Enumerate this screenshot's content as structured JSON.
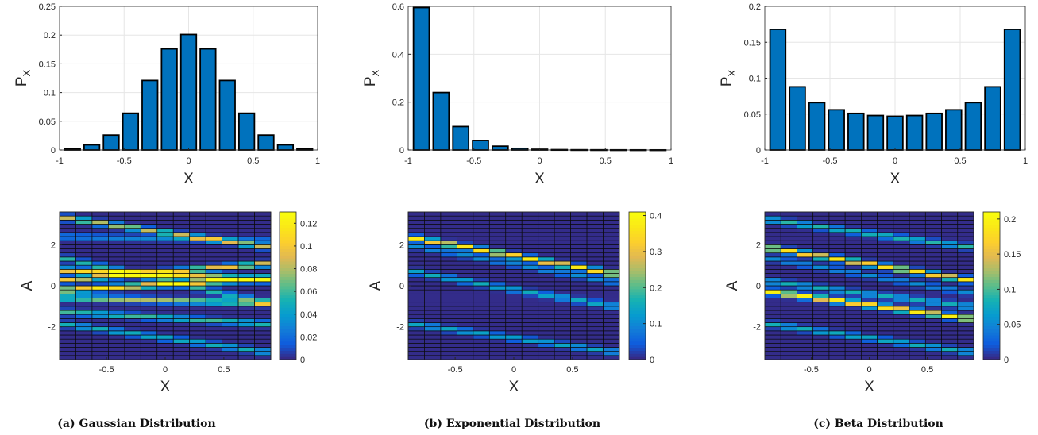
{
  "figure": {
    "captions": [
      "(a) Gaussian Distribution",
      "(b) Exponential Distribution",
      "(c) Beta Distribution"
    ]
  },
  "colors": {
    "bar_fill": "#0072BD",
    "bar_edge": "#000000",
    "grid": "#e6e6e6"
  },
  "chart_data": [
    {
      "type": "bar",
      "panel": "a-top",
      "xlabel": "X",
      "ylabel": "P",
      "ylabel_sub": "X",
      "xlim": [
        -1,
        1
      ],
      "ylim": [
        0,
        0.25
      ],
      "xticks": [
        "-1",
        "-0.5",
        "0",
        "0.5",
        "1"
      ],
      "xtick_values": [
        -1,
        -0.5,
        0,
        0.5,
        1
      ],
      "yticks": [
        "0",
        "0.05",
        "0.1",
        "0.15",
        "0.2",
        "0.25"
      ],
      "ytick_values": [
        0,
        0.05,
        0.1,
        0.15,
        0.2,
        0.25
      ],
      "x": [
        -0.9,
        -0.75,
        -0.6,
        -0.45,
        -0.3,
        -0.15,
        0,
        0.15,
        0.3,
        0.45,
        0.6,
        0.75,
        0.9
      ],
      "values": [
        0.002,
        0.009,
        0.026,
        0.064,
        0.121,
        0.176,
        0.201,
        0.176,
        0.121,
        0.064,
        0.026,
        0.009,
        0.002
      ]
    },
    {
      "type": "bar",
      "panel": "b-top",
      "xlabel": "X",
      "ylabel": "P",
      "ylabel_sub": "X",
      "xlim": [
        -1,
        1
      ],
      "ylim": [
        0,
        0.6
      ],
      "xticks": [
        "-1",
        "-0.5",
        "0",
        "0.5",
        "1"
      ],
      "xtick_values": [
        -1,
        -0.5,
        0,
        0.5,
        1
      ],
      "yticks": [
        "0",
        "0.2",
        "0.4",
        "0.6"
      ],
      "ytick_values": [
        0,
        0.2,
        0.4,
        0.6
      ],
      "x": [
        -0.9,
        -0.75,
        -0.6,
        -0.45,
        -0.3,
        -0.15,
        0,
        0.15,
        0.3,
        0.45,
        0.6,
        0.75,
        0.9
      ],
      "values": [
        0.595,
        0.24,
        0.098,
        0.04,
        0.016,
        0.007,
        0.003,
        0.0015,
        0.001,
        0.0008,
        0.0006,
        0.0005,
        0.0004
      ]
    },
    {
      "type": "bar",
      "panel": "c-top",
      "xlabel": "X",
      "ylabel": "P",
      "ylabel_sub": "X",
      "xlim": [
        -1,
        1
      ],
      "ylim": [
        0,
        0.2
      ],
      "xticks": [
        "-1",
        "-0.5",
        "0",
        "0.5",
        "1"
      ],
      "xtick_values": [
        -1,
        -0.5,
        0,
        0.5,
        1
      ],
      "yticks": [
        "0",
        "0.05",
        "0.1",
        "0.15",
        "0.2"
      ],
      "ytick_values": [
        0,
        0.05,
        0.1,
        0.15,
        0.2
      ],
      "x": [
        -0.9,
        -0.75,
        -0.6,
        -0.45,
        -0.3,
        -0.15,
        0,
        0.15,
        0.3,
        0.45,
        0.6,
        0.75,
        0.9
      ],
      "values": [
        0.168,
        0.088,
        0.066,
        0.056,
        0.051,
        0.048,
        0.047,
        0.048,
        0.051,
        0.056,
        0.066,
        0.088,
        0.168
      ]
    },
    {
      "type": "heatmap",
      "panel": "a-bottom",
      "xlabel": "X",
      "ylabel": "A",
      "xlim": [
        -0.9,
        0.9
      ],
      "ylim": [
        -3.6,
        3.6
      ],
      "xticks": [
        "-0.5",
        "0",
        "0.5"
      ],
      "xtick_values": [
        -0.5,
        0,
        0.5
      ],
      "yticks": [
        "-2",
        "0",
        "2"
      ],
      "ytick_values": [
        -2,
        0,
        2
      ],
      "colorbar_ticks": [
        "0",
        "0.02",
        "0.04",
        "0.06",
        "0.08",
        "0.1",
        "0.12"
      ],
      "colorbar_tick_values": [
        0,
        0.02,
        0.04,
        0.06,
        0.08,
        0.1,
        0.12
      ],
      "clim": [
        0,
        0.13
      ],
      "ncols": 13,
      "nrows": 36,
      "x_centers": [
        -0.9,
        -0.75,
        -0.6,
        -0.45,
        -0.3,
        -0.15,
        0,
        0.15,
        0.3,
        0.45,
        0.6,
        0.75,
        0.9
      ],
      "y_range": [
        -3.5,
        3.5
      ],
      "ridges": [
        {
          "a_start": -0.2,
          "a_end": 0.35,
          "value": 0.12
        },
        {
          "a_start": 0.75,
          "a_end": 0.3,
          "value": 0.11
        },
        {
          "a_start": 0.3,
          "a_end": 1.05,
          "value": 0.1
        },
        {
          "a_start": -0.6,
          "a_end": -0.85,
          "value": 0.08
        },
        {
          "a_start": 3.3,
          "a_end": 1.9,
          "value": 0.085
        },
        {
          "a_start": -1.3,
          "a_end": -1.85,
          "value": 0.06
        },
        {
          "a_start": 1.3,
          "a_end": -0.8,
          "value": 0.055
        },
        {
          "a_start": -1.9,
          "a_end": -3.2,
          "value": 0.05
        },
        {
          "a_start": 2.4,
          "a_end": 2.2,
          "value": 0.03
        }
      ]
    },
    {
      "type": "heatmap",
      "panel": "b-bottom",
      "xlabel": "X",
      "ylabel": "A",
      "xlim": [
        -0.9,
        0.9
      ],
      "ylim": [
        -3.6,
        3.6
      ],
      "xticks": [
        "-0.5",
        "0",
        "0.5"
      ],
      "xtick_values": [
        -0.5,
        0,
        0.5
      ],
      "yticks": [
        "-2",
        "0",
        "2"
      ],
      "ytick_values": [
        -2,
        0,
        2
      ],
      "colorbar_ticks": [
        "0",
        "0.1",
        "0.2",
        "0.3",
        "0.4"
      ],
      "colorbar_tick_values": [
        0,
        0.1,
        0.2,
        0.3,
        0.4
      ],
      "clim": [
        0,
        0.41
      ],
      "ncols": 13,
      "nrows": 36,
      "x_centers": [
        -0.9,
        -0.75,
        -0.6,
        -0.45,
        -0.3,
        -0.15,
        0,
        0.15,
        0.3,
        0.45,
        0.6,
        0.75,
        0.9
      ],
      "y_range": [
        -3.5,
        3.5
      ],
      "ridges": [
        {
          "a_start": 2.3,
          "a_end": 0.6,
          "value": 0.38
        },
        {
          "a_start": 0.65,
          "a_end": -1.0,
          "value": 0.15
        },
        {
          "a_start": 1.9,
          "a_end": 0.2,
          "value": 0.1
        },
        {
          "a_start": -1.9,
          "a_end": -3.2,
          "value": 0.14
        }
      ]
    },
    {
      "type": "heatmap",
      "panel": "c-bottom",
      "xlabel": "X",
      "ylabel": "A",
      "xlim": [
        -0.9,
        0.9
      ],
      "ylim": [
        -3.6,
        3.6
      ],
      "xticks": [
        "-0.5",
        "0",
        "0.5"
      ],
      "xtick_values": [
        -0.5,
        0,
        0.5
      ],
      "yticks": [
        "-2",
        "0",
        "2"
      ],
      "ytick_values": [
        -2,
        0,
        2
      ],
      "colorbar_ticks": [
        "0",
        "0.05",
        "0.1",
        "0.15",
        "0.2"
      ],
      "colorbar_tick_values": [
        0,
        0.05,
        0.1,
        0.15,
        0.2
      ],
      "clim": [
        0,
        0.21
      ],
      "ncols": 13,
      "nrows": 36,
      "x_centers": [
        -0.9,
        -0.75,
        -0.6,
        -0.45,
        -0.3,
        -0.15,
        0,
        0.15,
        0.3,
        0.45,
        0.6,
        0.75,
        0.9
      ],
      "y_range": [
        -3.5,
        3.5
      ],
      "ridges": [
        {
          "a_start": 1.8,
          "a_end": 0.3,
          "value": 0.19
        },
        {
          "a_start": -0.3,
          "a_end": -1.6,
          "value": 0.2
        },
        {
          "a_start": 3.2,
          "a_end": 1.9,
          "value": 0.09
        },
        {
          "a_start": 0.2,
          "a_end": -1.0,
          "value": 0.08
        },
        {
          "a_start": -1.9,
          "a_end": -3.2,
          "value": 0.08
        },
        {
          "a_start": 1.3,
          "a_end": -0.3,
          "value": 0.05
        }
      ]
    }
  ]
}
